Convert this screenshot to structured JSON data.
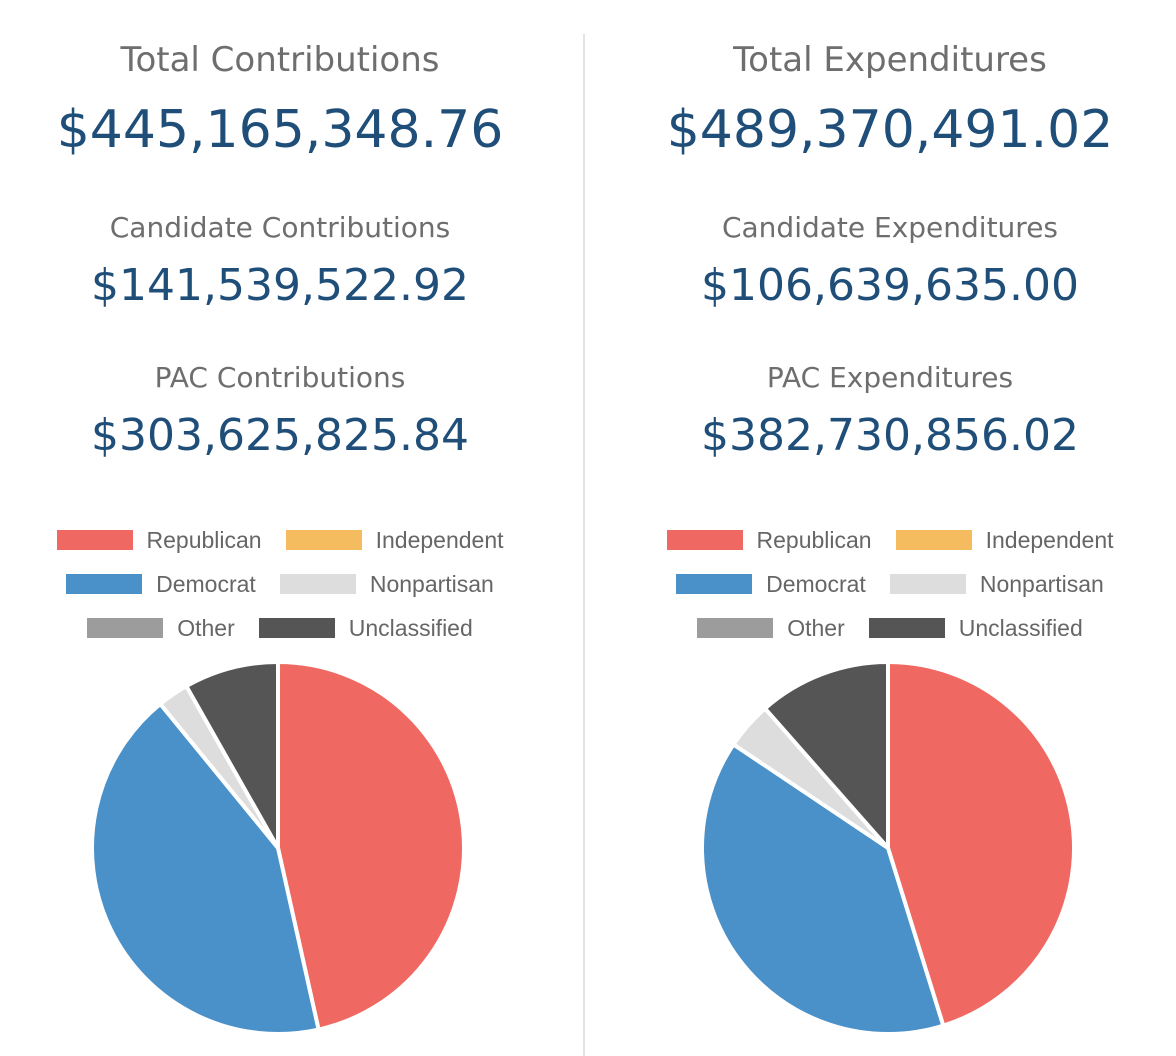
{
  "legend": {
    "rows": [
      [
        {
          "label": "Republican",
          "color": "#ef6862"
        },
        {
          "label": "Independent",
          "color": "#f4bb5f"
        }
      ],
      [
        {
          "label": "Democrat",
          "color": "#4a90c9"
        },
        {
          "label": "Nonpartisan",
          "color": "#dddddd"
        }
      ],
      [
        {
          "label": "Other",
          "color": "#9c9c9c"
        },
        {
          "label": "Unclassified",
          "color": "#555555"
        }
      ]
    ]
  },
  "contributions": {
    "total_label": "Total Contributions",
    "total_value": "$445,165,348.76",
    "candidate_label": "Candidate Contributions",
    "candidate_value": "$141,539,522.92",
    "pac_label": "PAC Contributions",
    "pac_value": "$303,625,825.84"
  },
  "expenditures": {
    "total_label": "Total Expenditures",
    "total_value": "$489,370,491.02",
    "candidate_label": "Candidate Expenditures",
    "candidate_value": "$106,639,635.00",
    "pac_label": "PAC Expenditures",
    "pac_value": "$382,730,856.02"
  },
  "chart_data": [
    {
      "type": "pie",
      "title": "",
      "legend_position": "top",
      "slices": [
        {
          "name": "Republican",
          "value": 46.5,
          "color": "#ef6862"
        },
        {
          "name": "Democrat",
          "value": 42.6,
          "color": "#4a90c9"
        },
        {
          "name": "Nonpartisan",
          "value": 2.7,
          "color": "#dddddd"
        },
        {
          "name": "Unclassified",
          "value": 8.2,
          "color": "#555555"
        }
      ]
    },
    {
      "type": "pie",
      "title": "",
      "legend_position": "top",
      "slices": [
        {
          "name": "Republican",
          "value": 45.2,
          "color": "#ef6862"
        },
        {
          "name": "Democrat",
          "value": 39.2,
          "color": "#4a90c9"
        },
        {
          "name": "Nonpartisan",
          "value": 4.1,
          "color": "#dddddd"
        },
        {
          "name": "Unclassified",
          "value": 11.5,
          "color": "#555555"
        }
      ]
    }
  ]
}
